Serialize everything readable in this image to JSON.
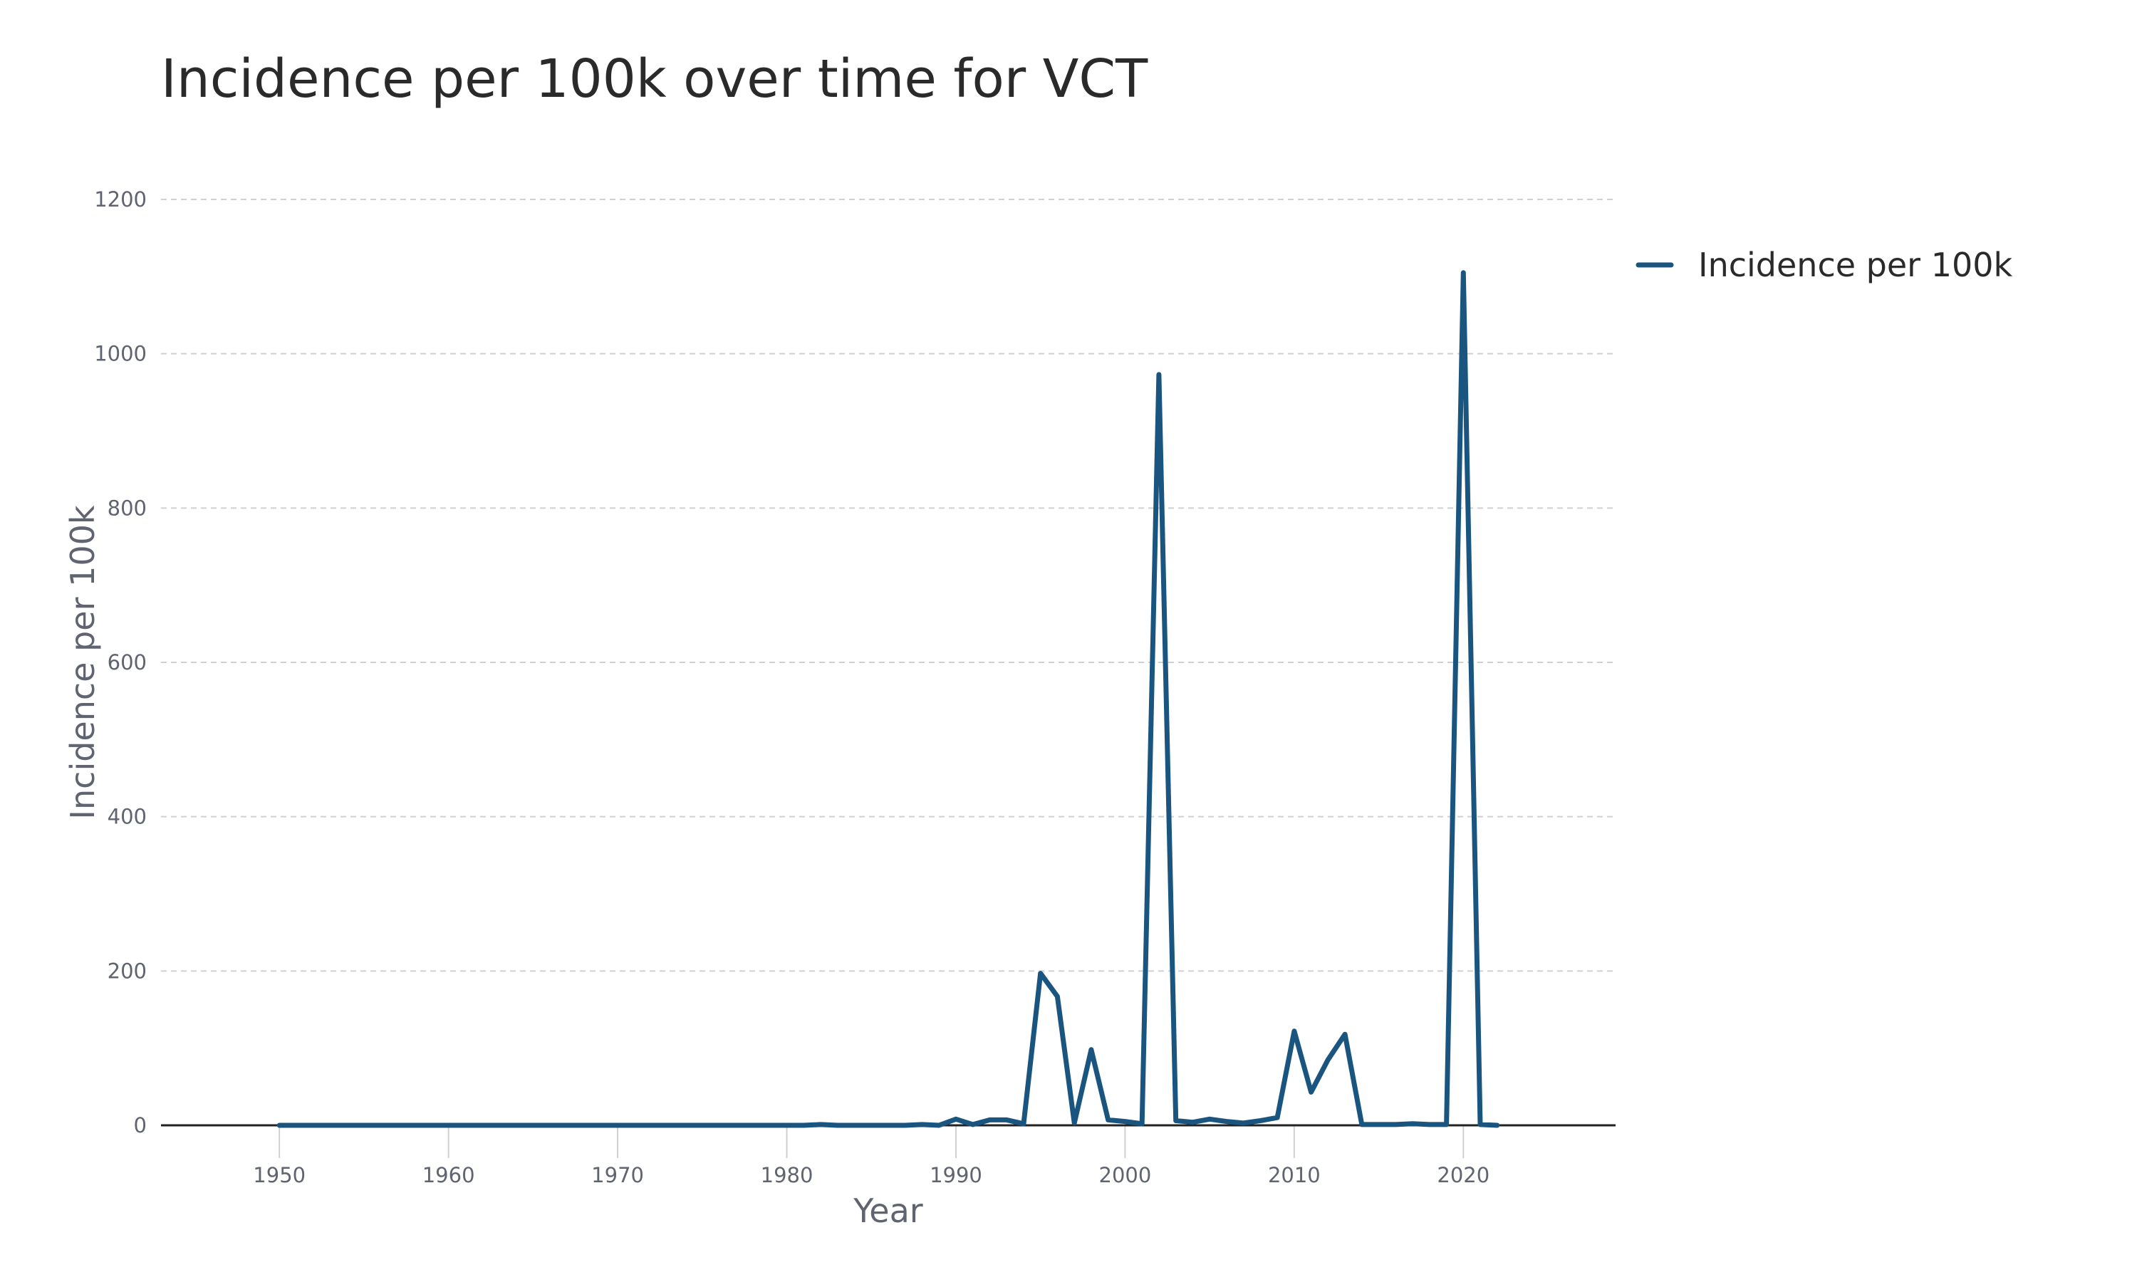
{
  "chart_data": {
    "type": "line",
    "title": "Incidence per 100k over time for VCT",
    "xlabel": "Year",
    "ylabel": "Incidence per 100k",
    "xlim": [
      1943,
      2029
    ],
    "ylim": [
      0,
      1200
    ],
    "xticks": [
      1950,
      1960,
      1970,
      1980,
      1990,
      2000,
      2010,
      2020
    ],
    "yticks": [
      0,
      200,
      400,
      600,
      800,
      1000,
      1200
    ],
    "grid": "horizontal dashed",
    "legend_position": "top-right outside",
    "colors": {
      "line": "#1a5580",
      "grid": "#cfd0d4",
      "axis": "#222222",
      "text": "#5f6470"
    },
    "series": [
      {
        "name": "Incidence per 100k",
        "x": [
          1950,
          1951,
          1952,
          1953,
          1954,
          1955,
          1956,
          1957,
          1958,
          1959,
          1960,
          1961,
          1962,
          1963,
          1964,
          1965,
          1966,
          1967,
          1968,
          1969,
          1970,
          1971,
          1972,
          1973,
          1974,
          1975,
          1976,
          1977,
          1978,
          1979,
          1980,
          1981,
          1982,
          1983,
          1984,
          1985,
          1986,
          1987,
          1988,
          1989,
          1990,
          1991,
          1992,
          1993,
          1994,
          1995,
          1996,
          1997,
          1998,
          1999,
          2000,
          2001,
          2002,
          2003,
          2004,
          2005,
          2006,
          2007,
          2008,
          2009,
          2010,
          2011,
          2012,
          2013,
          2014,
          2015,
          2016,
          2017,
          2018,
          2019,
          2020,
          2021,
          2022
        ],
        "y": [
          0,
          0,
          0,
          0,
          0,
          0,
          0,
          0,
          0,
          0,
          0,
          0,
          0,
          0,
          0,
          0,
          0,
          0,
          0,
          0,
          0,
          0,
          0,
          0,
          0,
          0,
          0,
          0,
          0,
          0,
          0,
          0,
          1,
          0,
          0,
          0,
          0,
          0,
          1,
          0,
          8,
          1,
          7,
          7,
          2,
          197,
          167,
          3,
          98,
          7,
          5,
          2,
          973,
          6,
          4,
          8,
          5,
          3,
          6,
          10,
          122,
          43,
          85,
          118,
          1,
          1,
          1,
          2,
          1,
          1,
          1105,
          1,
          0
        ]
      }
    ]
  }
}
